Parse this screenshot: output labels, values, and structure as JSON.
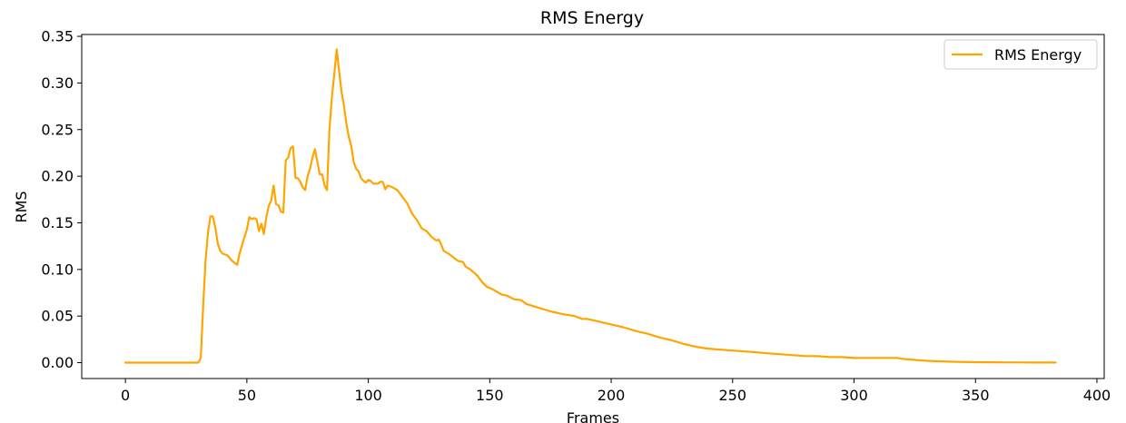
{
  "chart_data": {
    "type": "line",
    "title": "RMS Energy",
    "xlabel": "Frames",
    "ylabel": "RMS",
    "xlim": [
      -18,
      403
    ],
    "ylim": [
      -0.017,
      0.352
    ],
    "xticks": [
      0,
      50,
      100,
      150,
      200,
      250,
      300,
      350,
      400
    ],
    "yticks": [
      0.0,
      0.05,
      0.1,
      0.15,
      0.2,
      0.25,
      0.3,
      0.35
    ],
    "ytick_labels": [
      "0.00",
      "0.05",
      "0.10",
      "0.15",
      "0.20",
      "0.25",
      "0.30",
      "0.35"
    ],
    "legend": {
      "position": "top-right",
      "entries": [
        "RMS Energy"
      ]
    },
    "grid": false,
    "series": [
      {
        "name": "RMS Energy",
        "color": "#ffa500",
        "points": [
          [
            0,
            0.0
          ],
          [
            10,
            0.0
          ],
          [
            20,
            0.0
          ],
          [
            30,
            0.0
          ],
          [
            31,
            0.005
          ],
          [
            32,
            0.06
          ],
          [
            33,
            0.11
          ],
          [
            34,
            0.14
          ],
          [
            35,
            0.157
          ],
          [
            36,
            0.157
          ],
          [
            37,
            0.145
          ],
          [
            38,
            0.128
          ],
          [
            39,
            0.12
          ],
          [
            40,
            0.117
          ],
          [
            42,
            0.115
          ],
          [
            44,
            0.109
          ],
          [
            45,
            0.107
          ],
          [
            46,
            0.105
          ],
          [
            47,
            0.117
          ],
          [
            48,
            0.126
          ],
          [
            50,
            0.143
          ],
          [
            51,
            0.156
          ],
          [
            52,
            0.154
          ],
          [
            53,
            0.155
          ],
          [
            54,
            0.154
          ],
          [
            55,
            0.141
          ],
          [
            56,
            0.149
          ],
          [
            57,
            0.138
          ],
          [
            58,
            0.156
          ],
          [
            59,
            0.168
          ],
          [
            60,
            0.174
          ],
          [
            61,
            0.19
          ],
          [
            62,
            0.17
          ],
          [
            63,
            0.169
          ],
          [
            64,
            0.162
          ],
          [
            65,
            0.161
          ],
          [
            66,
            0.217
          ],
          [
            67,
            0.22
          ],
          [
            68,
            0.23
          ],
          [
            69,
            0.232
          ],
          [
            70,
            0.198
          ],
          [
            71,
            0.198
          ],
          [
            72,
            0.194
          ],
          [
            73,
            0.188
          ],
          [
            74,
            0.185
          ],
          [
            75,
            0.2
          ],
          [
            76,
            0.208
          ],
          [
            77,
            0.22
          ],
          [
            78,
            0.229
          ],
          [
            79,
            0.216
          ],
          [
            80,
            0.202
          ],
          [
            81,
            0.202
          ],
          [
            82,
            0.19
          ],
          [
            83,
            0.185
          ],
          [
            84,
            0.25
          ],
          [
            85,
            0.285
          ],
          [
            86,
            0.31
          ],
          [
            87,
            0.336
          ],
          [
            88,
            0.312
          ],
          [
            89,
            0.29
          ],
          [
            90,
            0.275
          ],
          [
            91,
            0.256
          ],
          [
            92,
            0.242
          ],
          [
            93,
            0.232
          ],
          [
            94,
            0.215
          ],
          [
            95,
            0.208
          ],
          [
            96,
            0.205
          ],
          [
            97,
            0.198
          ],
          [
            98,
            0.195
          ],
          [
            99,
            0.193
          ],
          [
            100,
            0.196
          ],
          [
            101,
            0.195
          ],
          [
            102,
            0.192
          ],
          [
            104,
            0.192
          ],
          [
            105,
            0.194
          ],
          [
            106,
            0.194
          ],
          [
            107,
            0.186
          ],
          [
            108,
            0.19
          ],
          [
            110,
            0.188
          ],
          [
            112,
            0.185
          ],
          [
            114,
            0.178
          ],
          [
            116,
            0.171
          ],
          [
            118,
            0.16
          ],
          [
            120,
            0.153
          ],
          [
            122,
            0.144
          ],
          [
            124,
            0.141
          ],
          [
            126,
            0.135
          ],
          [
            128,
            0.131
          ],
          [
            129,
            0.132
          ],
          [
            130,
            0.127
          ],
          [
            131,
            0.12
          ],
          [
            133,
            0.117
          ],
          [
            135,
            0.113
          ],
          [
            137,
            0.109
          ],
          [
            139,
            0.108
          ],
          [
            140,
            0.103
          ],
          [
            142,
            0.1
          ],
          [
            145,
            0.093
          ],
          [
            147,
            0.086
          ],
          [
            149,
            0.081
          ],
          [
            151,
            0.079
          ],
          [
            153,
            0.076
          ],
          [
            155,
            0.073
          ],
          [
            157,
            0.072
          ],
          [
            160,
            0.068
          ],
          [
            163,
            0.067
          ],
          [
            165,
            0.063
          ],
          [
            170,
            0.059
          ],
          [
            175,
            0.055
          ],
          [
            180,
            0.052
          ],
          [
            185,
            0.05
          ],
          [
            188,
            0.047
          ],
          [
            190,
            0.047
          ],
          [
            195,
            0.044
          ],
          [
            200,
            0.041
          ],
          [
            205,
            0.038
          ],
          [
            210,
            0.034
          ],
          [
            215,
            0.031
          ],
          [
            220,
            0.027
          ],
          [
            225,
            0.024
          ],
          [
            230,
            0.02
          ],
          [
            235,
            0.017
          ],
          [
            240,
            0.015
          ],
          [
            245,
            0.014
          ],
          [
            250,
            0.013
          ],
          [
            255,
            0.012
          ],
          [
            260,
            0.011
          ],
          [
            265,
            0.01
          ],
          [
            270,
            0.009
          ],
          [
            275,
            0.008
          ],
          [
            280,
            0.007
          ],
          [
            285,
            0.007
          ],
          [
            290,
            0.006
          ],
          [
            295,
            0.006
          ],
          [
            300,
            0.005
          ],
          [
            305,
            0.005
          ],
          [
            310,
            0.005
          ],
          [
            315,
            0.005
          ],
          [
            318,
            0.005
          ],
          [
            320,
            0.004
          ],
          [
            325,
            0.003
          ],
          [
            330,
            0.002
          ],
          [
            340,
            0.001
          ],
          [
            350,
            0.0005
          ],
          [
            360,
            0.0003
          ],
          [
            370,
            0.0002
          ],
          [
            383,
            0.0001
          ]
        ]
      }
    ]
  }
}
